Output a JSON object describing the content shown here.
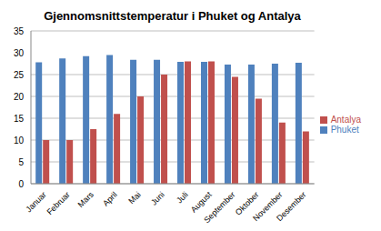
{
  "chart_data": {
    "type": "bar",
    "title": "Gjennomsnittstemperatur i Phuket og Antalya",
    "categories": [
      "Januar",
      "Februar",
      "Mars",
      "April",
      "Mai",
      "Juni",
      "Juli",
      "August",
      "September",
      "Oktober",
      "November",
      "Desember"
    ],
    "series": [
      {
        "name": "Phuket",
        "color": "#4f81bd",
        "values": [
          27.8,
          28.7,
          29.2,
          29.5,
          28.4,
          28.4,
          27.9,
          27.9,
          27.3,
          27.3,
          27.5,
          27.7
        ]
      },
      {
        "name": "Antalya",
        "color": "#c0504d",
        "values": [
          10,
          10,
          12.5,
          16,
          20,
          25,
          28,
          28,
          24.5,
          19.5,
          14,
          12
        ]
      }
    ],
    "ylim": [
      0,
      35
    ],
    "yticks": [
      0,
      5,
      10,
      15,
      20,
      25,
      30,
      35
    ],
    "grid": true,
    "legend": "right"
  }
}
